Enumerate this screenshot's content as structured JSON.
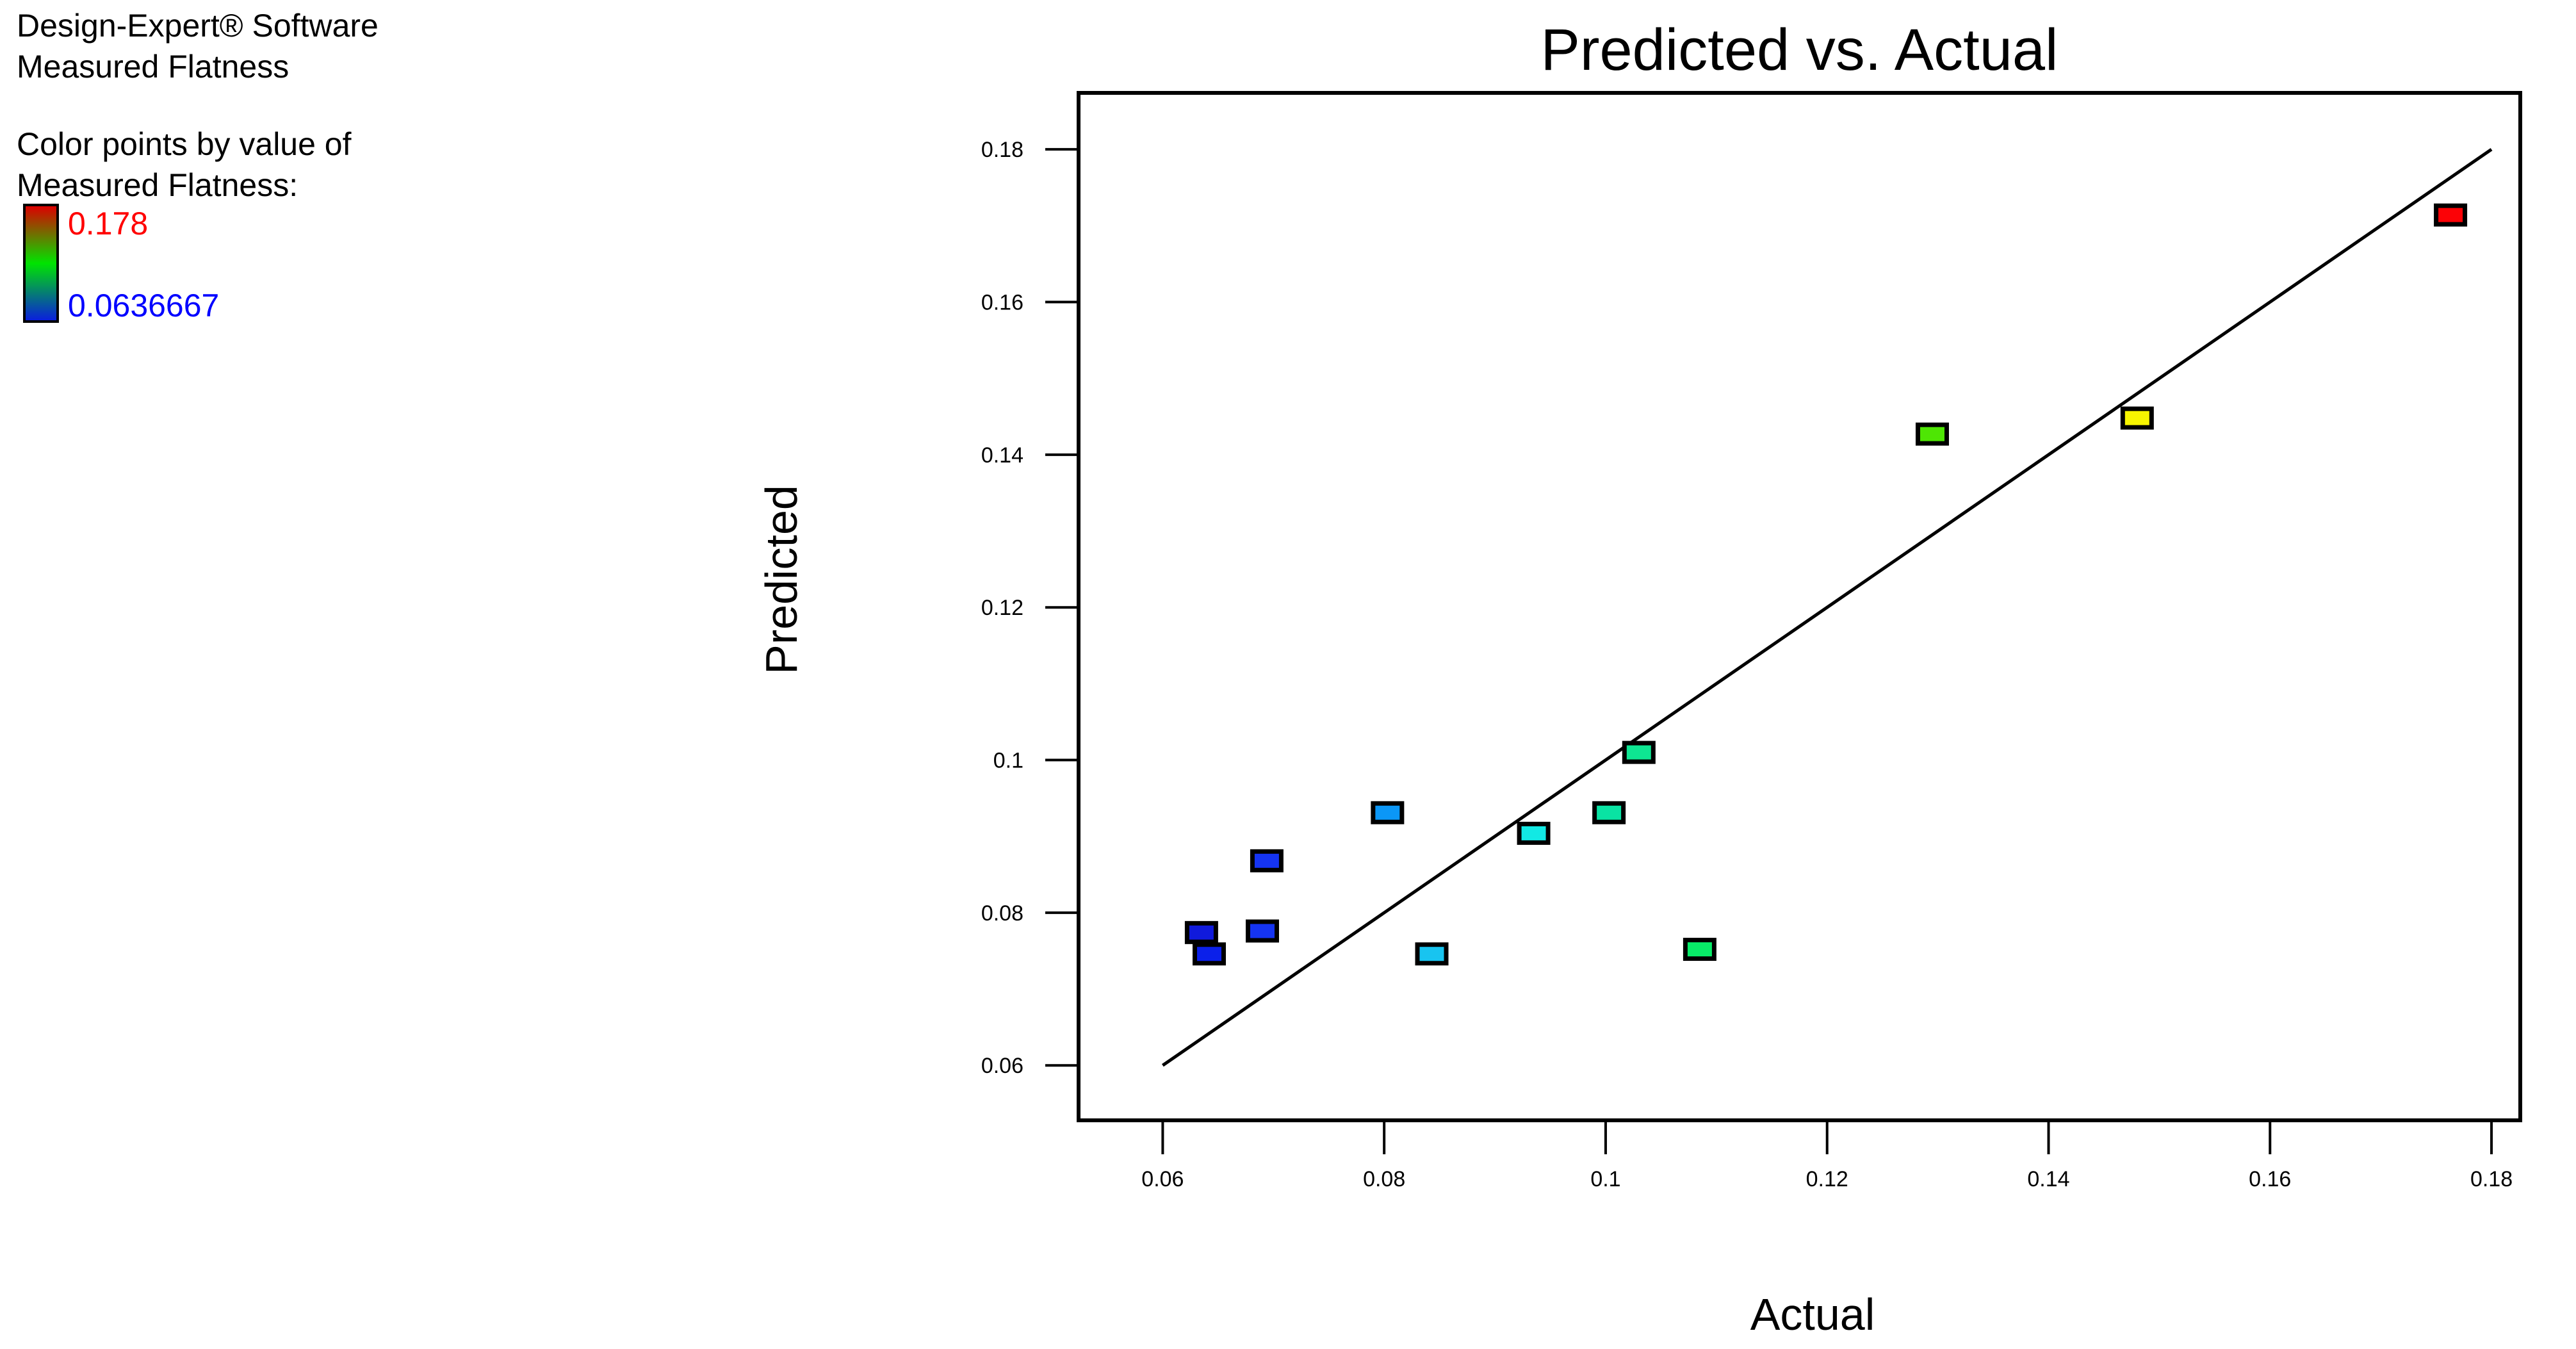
{
  "info_panel": {
    "software": "Design-Expert® Software",
    "response": "Measured Flatness",
    "color_by_line1": "Color points by value of",
    "color_by_line2": "Measured Flatness:",
    "legend": {
      "max": "0.178",
      "min": "0.0636667",
      "max_text_color": "#ff0000",
      "min_text_color": "#0000ff",
      "gradient": [
        "#dc0000",
        "#00e400",
        "#0a1fdd"
      ]
    }
  },
  "chart_data": {
    "type": "scatter",
    "title": "Predicted vs. Actual",
    "xlabel": "Actual",
    "ylabel": "Predicted",
    "x_ticks": [
      "0.06",
      "0.08",
      "0.1",
      "0.12",
      "0.14",
      "0.16",
      "0.18"
    ],
    "y_ticks": [
      "0.06",
      "0.08",
      "0.1",
      "0.12",
      "0.14",
      "0.16",
      "0.18"
    ],
    "x_range": [
      0.0524,
      0.1826
    ],
    "y_range": [
      0.0528,
      0.1874
    ],
    "grid": false,
    "legend_position": "none",
    "identity_line": {
      "x1": 0.06,
      "y1": 0.06,
      "x2": 0.18,
      "y2": 0.18
    },
    "points": [
      {
        "actual": 0.0635,
        "predicted": 0.0774,
        "color": "#101adc"
      },
      {
        "actual": 0.0642,
        "predicted": 0.0746,
        "color": "#0b20ea"
      },
      {
        "actual": 0.0694,
        "predicted": 0.0868,
        "color": "#1534f2"
      },
      {
        "actual": 0.069,
        "predicted": 0.0776,
        "color": "#1534f2"
      },
      {
        "actual": 0.0803,
        "predicted": 0.0931,
        "color": "#0b97f7"
      },
      {
        "actual": 0.0843,
        "predicted": 0.0746,
        "color": "#18c4f0"
      },
      {
        "actual": 0.0935,
        "predicted": 0.0904,
        "color": "#12e9e4"
      },
      {
        "actual": 0.1003,
        "predicted": 0.0931,
        "color": "#09e3a3"
      },
      {
        "actual": 0.103,
        "predicted": 0.101,
        "color": "#0ee692"
      },
      {
        "actual": 0.1085,
        "predicted": 0.0752,
        "color": "#08ec68"
      },
      {
        "actual": 0.1295,
        "predicted": 0.1427,
        "color": "#4ee604"
      },
      {
        "actual": 0.148,
        "predicted": 0.1448,
        "color": "#f7f500"
      },
      {
        "actual": 0.1763,
        "predicted": 0.1714,
        "color": "#fc0206"
      }
    ]
  }
}
